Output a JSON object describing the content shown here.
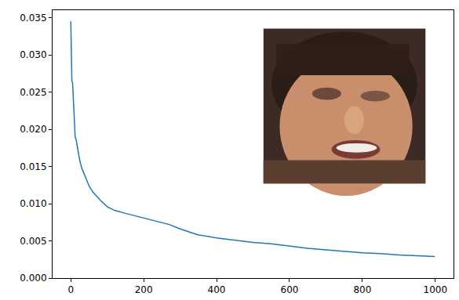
{
  "chart_data": {
    "type": "line",
    "color": "#1f77b4",
    "x": [
      0,
      1,
      2,
      3,
      5,
      8,
      10,
      12,
      15,
      20,
      25,
      30,
      40,
      50,
      60,
      70,
      80,
      100,
      120,
      150,
      200,
      250,
      270,
      300,
      350,
      400,
      450,
      500,
      550,
      600,
      650,
      700,
      750,
      800,
      850,
      900,
      950,
      999
    ],
    "values": [
      0.0345,
      0.03,
      0.0268,
      0.0265,
      0.0262,
      0.023,
      0.0205,
      0.019,
      0.0185,
      0.017,
      0.0157,
      0.0148,
      0.0135,
      0.0124,
      0.0116,
      0.011,
      0.0105,
      0.0096,
      0.0091,
      0.0087,
      0.0081,
      0.0075,
      0.0072,
      0.0066,
      0.0058,
      0.0054,
      0.0051,
      0.0048,
      0.0046,
      0.0043,
      0.004,
      0.0038,
      0.0036,
      0.0034,
      0.0033,
      0.0031,
      0.003,
      0.0029
    ],
    "xlim": [
      -50,
      1050
    ],
    "ylim": [
      0,
      0.036
    ],
    "xticks": [
      0,
      200,
      400,
      600,
      800,
      1000
    ],
    "yticks": [
      {
        "value": 0,
        "label": "0.000"
      },
      {
        "value": 0.005,
        "label": "0.005"
      },
      {
        "value": 0.01,
        "label": "0.010"
      },
      {
        "value": 0.015,
        "label": "0.015"
      },
      {
        "value": 0.02,
        "label": "0.020"
      },
      {
        "value": 0.025,
        "label": "0.025"
      },
      {
        "value": 0.03,
        "label": "0.030"
      },
      {
        "value": 0.035,
        "label": "0.035"
      }
    ],
    "grid": false
  }
}
